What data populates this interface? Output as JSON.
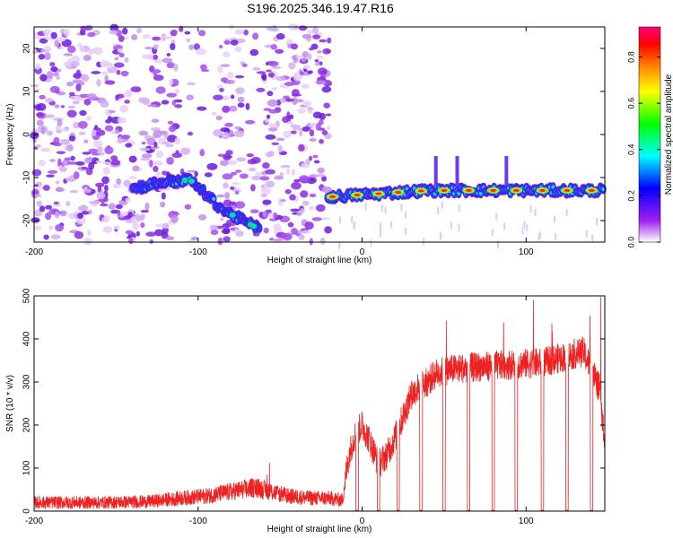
{
  "title": "S196.2025.346.19.47.R16",
  "chart_data": [
    {
      "type": "heatmap",
      "name": "spectrogram",
      "xlabel": "Height of straight line (km)",
      "ylabel": "Frequency (Hz)",
      "xlim": [
        -200,
        148
      ],
      "ylim": [
        -25,
        25
      ],
      "xticks": [
        -200,
        -100,
        0,
        100
      ],
      "yticks": [
        -20,
        -10,
        0,
        10,
        20
      ],
      "colorbar": {
        "label": "Normalized spectral amplitude",
        "range": [
          0.0,
          0.93
        ],
        "ticks": [
          0.0,
          0.2,
          0.4,
          0.6,
          0.8
        ],
        "colormap": [
          "#ffffff",
          "#a020f0",
          "#0000ff",
          "#00ffff",
          "#00ff00",
          "#ffff00",
          "#ff8000",
          "#ff0000",
          "#ff0080"
        ]
      },
      "noise_region_x": [
        -200,
        -20
      ],
      "tone_track": [
        {
          "x": -140,
          "freq": -12.5
        },
        {
          "x": -120,
          "freq": -11.0
        },
        {
          "x": -105,
          "freq": -10.5
        },
        {
          "x": -95,
          "freq": -14.0
        },
        {
          "x": -85,
          "freq": -17.5
        },
        {
          "x": -75,
          "freq": -19.5
        },
        {
          "x": -65,
          "freq": -21.5
        },
        {
          "x": -20,
          "freq": -14.5
        },
        {
          "x": 0,
          "freq": -14.0
        },
        {
          "x": 20,
          "freq": -13.5
        },
        {
          "x": 40,
          "freq": -13.0
        },
        {
          "x": 60,
          "freq": -13.0
        },
        {
          "x": 80,
          "freq": -13.0
        },
        {
          "x": 100,
          "freq": -13.0
        },
        {
          "x": 120,
          "freq": -13.0
        },
        {
          "x": 148,
          "freq": -13.0
        }
      ],
      "hotspots_x": [
        -18,
        -3,
        10,
        22,
        36,
        50,
        65,
        80,
        94,
        110,
        125,
        140
      ]
    },
    {
      "type": "line",
      "name": "snr",
      "xlabel": "Height of straight line (km)",
      "ylabel": "SNR (10 * v/v)",
      "xlim": [
        -200,
        148
      ],
      "ylim": [
        0,
        500
      ],
      "xticks": [
        -200,
        -100,
        0,
        100
      ],
      "yticks": [
        0,
        100,
        200,
        300,
        400,
        500
      ],
      "color": "#ee2222",
      "series": [
        {
          "name": "SNR envelope",
          "x": [
            -200,
            -160,
            -130,
            -110,
            -95,
            -80,
            -65,
            -55,
            -45,
            -30,
            -20,
            -12,
            -10,
            -8,
            -5,
            -2,
            0,
            5,
            10,
            15,
            20,
            25,
            30,
            35,
            40,
            45,
            55,
            70,
            90,
            110,
            125,
            135,
            140,
            145,
            148
          ],
          "y": [
            20,
            20,
            22,
            30,
            35,
            45,
            55,
            45,
            35,
            30,
            30,
            25,
            80,
            130,
            170,
            190,
            200,
            160,
            110,
            130,
            170,
            220,
            270,
            290,
            300,
            320,
            330,
            335,
            340,
            345,
            360,
            370,
            330,
            280,
            150
          ]
        }
      ],
      "dropouts_x": [
        -3,
        10,
        22,
        36,
        50,
        65,
        80,
        94,
        110,
        125,
        140
      ],
      "spike_max": 500
    }
  ]
}
